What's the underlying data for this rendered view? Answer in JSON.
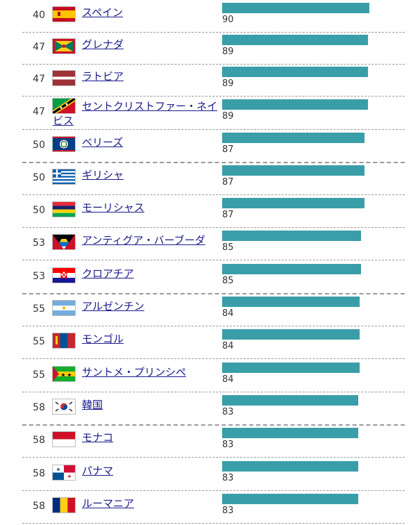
{
  "rows": [
    {
      "rank": "40",
      "name": "スペイン",
      "score": 90,
      "flag": "spain-flag-icon"
    },
    {
      "rank": "47",
      "name": "グレナダ",
      "score": 89,
      "flag": "grenada-flag-icon"
    },
    {
      "rank": "47",
      "name": "ラトビア",
      "score": 89,
      "flag": "latvia-flag-icon"
    },
    {
      "rank": "47",
      "name": "セントクリストファー・ネイビス",
      "score": 89,
      "flag": "saint-kitts-and-nevis-flag-icon",
      "wrap": true
    },
    {
      "rank": "50",
      "name": "ベリーズ",
      "score": 87,
      "flag": "belize-flag-icon",
      "sep": true
    },
    {
      "rank": "50",
      "name": "ギリシャ",
      "score": 87,
      "flag": "greece-flag-icon"
    },
    {
      "rank": "50",
      "name": "モーリシャス",
      "score": 87,
      "flag": "mauritius-flag-icon"
    },
    {
      "rank": "53",
      "name": "アンティグア・バーブーダ",
      "score": 85,
      "flag": "antigua-and-barbuda-flag-icon"
    },
    {
      "rank": "53",
      "name": "クロアチア",
      "score": 85,
      "flag": "croatia-flag-icon",
      "sep": true
    },
    {
      "rank": "55",
      "name": "アルゼンチン",
      "score": 84,
      "flag": "argentina-flag-icon"
    },
    {
      "rank": "55",
      "name": "モンゴル",
      "score": 84,
      "flag": "mongolia-flag-icon"
    },
    {
      "rank": "55",
      "name": "サントメ・プリンシペ",
      "score": 84,
      "flag": "sao-tome-and-principe-flag-icon"
    },
    {
      "rank": "58",
      "name": "韓国",
      "score": 83,
      "flag": "south-korea-flag-icon",
      "sep": true
    },
    {
      "rank": "58",
      "name": "モナコ",
      "score": 83,
      "flag": "monaco-flag-icon"
    },
    {
      "rank": "58",
      "name": "パナマ",
      "score": 83,
      "flag": "panama-flag-icon"
    },
    {
      "rank": "58",
      "name": "ルーマニア",
      "score": 83,
      "flag": "romania-flag-icon"
    }
  ],
  "bar_color": "#3a9ea8",
  "link_color": "#1a1a8c"
}
